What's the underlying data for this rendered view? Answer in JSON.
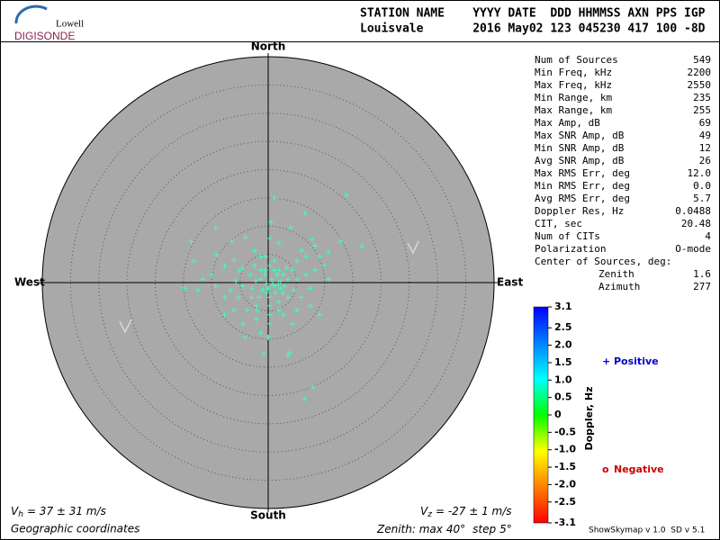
{
  "header": {
    "logo_top": "Lowell",
    "logo_bottom": "DIGISONDE",
    "columns_line": "STATION NAME    YYYY DATE  DDD HHMMSS AXN PPS IGP",
    "values_line": "Louisvale       2016 May02 123 045230 417 100 -8D"
  },
  "stats": [
    {
      "label": "Num of Sources",
      "value": "549"
    },
    {
      "label": "Min Freq, kHz",
      "value": "2200"
    },
    {
      "label": "Max Freq, kHz",
      "value": "2550"
    },
    {
      "label": "Min Range, km",
      "value": "235"
    },
    {
      "label": "Max Range, km",
      "value": "255"
    },
    {
      "label": "Max Amp, dB",
      "value": "69"
    },
    {
      "label": "Max SNR Amp, dB",
      "value": "49"
    },
    {
      "label": "Min SNR Amp, dB",
      "value": "12"
    },
    {
      "label": "Avg SNR Amp, dB",
      "value": "26"
    },
    {
      "label": "Max RMS Err, deg",
      "value": "12.0"
    },
    {
      "label": "Min RMS Err, deg",
      "value": "0.0"
    },
    {
      "label": "Avg RMS Err, deg",
      "value": "5.7"
    },
    {
      "label": "Doppler Res, Hz",
      "value": "0.0488"
    },
    {
      "label": "CIT, sec",
      "value": "20.48"
    },
    {
      "label": "Num of CITs",
      "value": "4"
    },
    {
      "label": "Polarization",
      "value": "O-mode"
    }
  ],
  "center_label": "Center of Sources, deg:",
  "center": [
    {
      "label": "Zenith",
      "value": "1.6"
    },
    {
      "label": "Azimuth",
      "value": "277"
    }
  ],
  "chart_data": {
    "type": "skymap",
    "directions": {
      "north": "North",
      "south": "South",
      "west": "West",
      "east": "East"
    },
    "zenith_scale": {
      "label": "Zenith: max",
      "max": 40,
      "unit": "°",
      "step_label": "step",
      "step": 5
    },
    "color": "#3fffb8",
    "x": [
      1.1,
      13.9,
      6.5,
      0.5,
      4.0,
      -9.3,
      -13.6,
      -6.4,
      -4.0,
      7.8,
      12.8,
      16.6,
      8.3,
      5.9,
      -2.4,
      -9.1,
      -13.2,
      -6.1,
      0.3,
      1.9,
      -1.3,
      -4.5,
      -7.7,
      -10.0,
      -11.6,
      -14.8,
      -12.4,
      -7.7,
      -5.3,
      -2.9,
      -1.3,
      -0.5,
      0.3,
      1.1,
      1.9,
      2.7,
      3.5,
      4.3,
      5.1,
      6.7,
      8.3,
      9.9,
      10.7,
      7.5,
      5.9,
      3.5,
      1.9,
      0.3,
      -2.1,
      -3.7,
      -6.1,
      -7.7,
      -4.5,
      -2.1,
      0.3,
      2.7,
      5.1,
      7.5,
      9.1,
      4.3,
      -1.3,
      -4.1,
      0.0,
      3.8,
      -0.8,
      8.0,
      6.4,
      3.5,
      2.2,
      1.1,
      0.6,
      0.0,
      -0.3,
      -1.0,
      1.6,
      2.2,
      2.9,
      0.3,
      1.3,
      -1.6,
      -0.6,
      1.0,
      3.2,
      4.5,
      -2.2,
      -3.2,
      -4.5,
      -5.7,
      -6.7,
      -9.3,
      5.1,
      6.7,
      9.1,
      10.7,
      -2.9,
      -1.9,
      0.3,
      1.9,
      -5.1,
      -2.4,
      -0.5,
      0.8,
      1.8,
      -0.2,
      2.6,
      -1.3
    ],
    "y": [
      15.0,
      15.5,
      12.3,
      10.7,
      9.7,
      9.7,
      7.3,
      7.3,
      8.0,
      7.7,
      7.3,
      6.4,
      6.5,
      5.7,
      5.7,
      4.9,
      3.8,
      4.0,
      7.8,
      7.0,
      4.6,
      2.6,
      2.9,
      1.4,
      0.6,
      -1.0,
      -1.3,
      -2.6,
      -2.6,
      -1.0,
      0.6,
      2.2,
      3.0,
      3.8,
      2.2,
      1.4,
      0.6,
      2.2,
      0.6,
      1.4,
      2.2,
      3.0,
      0.6,
      -1.0,
      -2.6,
      -2.6,
      -3.4,
      -4.1,
      -4.1,
      -4.9,
      -4.9,
      -5.7,
      -7.3,
      -6.5,
      -7.3,
      -5.7,
      -4.9,
      -4.1,
      -5.7,
      -7.3,
      -8.9,
      -9.7,
      -9.7,
      -12.4,
      -12.6,
      -18.5,
      -20.6,
      -12.9,
      -1.0,
      -0.6,
      0.6,
      -1.0,
      -0.2,
      -1.3,
      1.4,
      0.3,
      -0.6,
      -2.6,
      -1.8,
      -2.6,
      1.4,
      2.2,
      2.6,
      -1.3,
      0.3,
      1.4,
      -0.6,
      0.3,
      -1.3,
      -0.6,
      3.8,
      4.6,
      4.6,
      5.4,
      -2.6,
      -4.9,
      -5.7,
      -4.9,
      2.2,
      3.0,
      4.6,
      -0.2,
      -0.2,
      -1.8,
      -1.9,
      2.2
    ],
    "colorbar": {
      "label": "Doppler, Hz",
      "clim": [
        -3.1,
        3.1
      ],
      "colors": [
        "#ff0000",
        "#ff8000",
        "#ffff00",
        "#00ff00",
        "#00ffff",
        "#0080ff",
        "#0000ff"
      ],
      "ticks": [
        3.1,
        2.5,
        {
          "value": 2,
          "label": "2.0"
        },
        1.5,
        {
          "value": 1,
          "label": "1.0"
        },
        0.5,
        0,
        -0.5,
        {
          "value": -1,
          "label": "-1.0"
        },
        -1.5,
        {
          "value": -2,
          "label": "-2.0"
        },
        -2.5,
        -3.1
      ]
    },
    "legend": [
      {
        "symbol": "+",
        "label": "Positive",
        "color": "#0000cc"
      },
      {
        "symbol": "o",
        "label": "Negative",
        "color": "#cc0000"
      }
    ],
    "vh": {
      "symbol": "V",
      "subscript": "h",
      "text": "= 37 ± 31 m/s"
    },
    "vz": {
      "symbol": "V",
      "subscript": "z",
      "text": "= -27 ± 1 m/s"
    },
    "coordinates": "Geographic coordinates",
    "version": "ShowSkymap v 1.0  SD v 5.1"
  }
}
